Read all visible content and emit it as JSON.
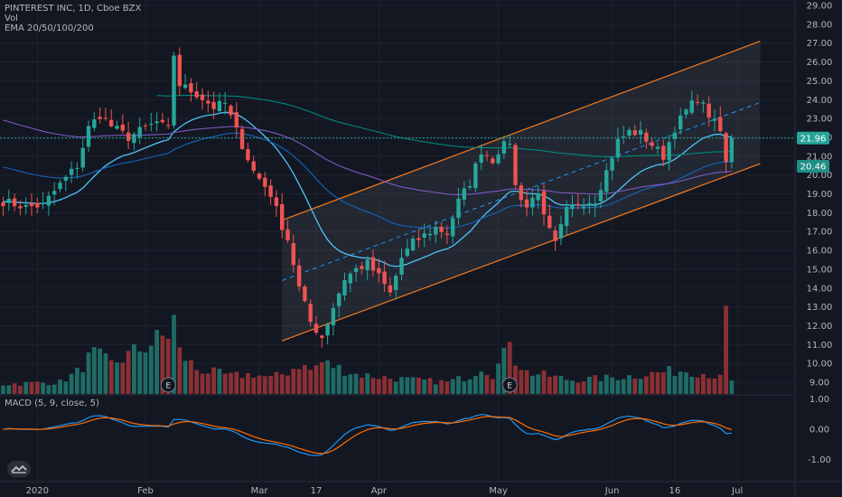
{
  "legend": {
    "symbol": "PINTEREST INC, 1D, Cboe BZX",
    "line2": "Vol",
    "line3": "EMA 20/50/100/200"
  },
  "macd_label": "MACD (5, 9, close, 5)",
  "badges": {
    "earnings": "E"
  },
  "price_tags": {
    "last": "21.96",
    "current": "20.46"
  },
  "colors": {
    "background": "#131722",
    "up": "#26a69a",
    "down": "#ef5350",
    "vol_up": "#1f6b65",
    "vol_down": "#8a3034",
    "channel": "#f57c1f",
    "ema20": "#4fc3f7",
    "ema50": "#1565c0",
    "ema100": "#7e57c2",
    "ema200": "#00897b",
    "macd": "#2196f3",
    "signal": "#ff6d00"
  },
  "chart_data": {
    "type": "candlestick",
    "y_ticks": [
      "29.00",
      "28.00",
      "27.00",
      "26.00",
      "25.00",
      "24.00",
      "23.00",
      "22.00",
      "21.00",
      "20.00",
      "19.00",
      "18.00",
      "17.00",
      "16.00",
      "15.00",
      "14.00",
      "13.00",
      "12.00",
      "11.00",
      "10.00",
      "9.00"
    ],
    "ylim": [
      8.7,
      29.3
    ],
    "x_ticks": [
      {
        "label": "2020",
        "day": 6
      },
      {
        "label": "Feb",
        "day": 25
      },
      {
        "label": "Mar",
        "day": 45
      },
      {
        "label": "17",
        "day": 55
      },
      {
        "label": "Apr",
        "day": 66
      },
      {
        "label": "May",
        "day": 87
      },
      {
        "label": "Jun",
        "day": 107
      },
      {
        "label": "16",
        "day": 118
      },
      {
        "label": "Jul",
        "day": 129
      }
    ],
    "macd_ticks": [
      "1.00",
      "0.00",
      "-1.00"
    ],
    "macd_ylim": [
      -1.6,
      1.2
    ],
    "last_price": 21.96,
    "current_price": 20.46,
    "earnings_days": [
      29,
      89
    ],
    "anchors": [
      [
        0,
        18.6
      ],
      [
        4,
        18.3
      ],
      [
        7,
        18.4
      ],
      [
        10,
        19.5
      ],
      [
        13,
        20.5
      ],
      [
        15,
        22.5
      ],
      [
        17,
        23.2
      ],
      [
        19,
        22.6
      ],
      [
        22,
        22.0
      ],
      [
        25,
        22.5
      ],
      [
        27,
        22.8
      ],
      [
        29,
        22.4
      ],
      [
        30,
        26.4
      ],
      [
        31,
        24.8
      ],
      [
        34,
        24.3
      ],
      [
        37,
        23.6
      ],
      [
        39,
        23.8
      ],
      [
        42,
        21.6
      ],
      [
        44,
        20.2
      ],
      [
        47,
        19.0
      ],
      [
        49,
        17.3
      ],
      [
        50,
        16.6
      ],
      [
        52,
        14.0
      ],
      [
        54,
        12.2
      ],
      [
        56,
        11.4
      ],
      [
        58,
        13.0
      ],
      [
        60,
        14.5
      ],
      [
        62,
        15.0
      ],
      [
        64,
        15.3
      ],
      [
        66,
        14.6
      ],
      [
        68,
        13.7
      ],
      [
        70,
        15.6
      ],
      [
        72,
        16.4
      ],
      [
        74,
        16.8
      ],
      [
        76,
        17.2
      ],
      [
        78,
        16.9
      ],
      [
        80,
        18.6
      ],
      [
        82,
        19.6
      ],
      [
        84,
        21.3
      ],
      [
        86,
        20.8
      ],
      [
        87,
        21.3
      ],
      [
        89,
        21.8
      ],
      [
        90,
        19.4
      ],
      [
        92,
        18.3
      ],
      [
        94,
        19.2
      ],
      [
        95,
        17.7
      ],
      [
        96,
        17.0
      ],
      [
        97,
        16.3
      ],
      [
        99,
        18.1
      ],
      [
        101,
        18.5
      ],
      [
        104,
        18.7
      ],
      [
        106,
        20.2
      ],
      [
        108,
        21.8
      ],
      [
        110,
        22.3
      ],
      [
        112,
        22.2
      ],
      [
        114,
        21.6
      ],
      [
        116,
        21.0
      ],
      [
        118,
        22.5
      ],
      [
        120,
        23.4
      ],
      [
        122,
        24.1
      ],
      [
        124,
        23.2
      ],
      [
        126,
        22.3
      ],
      [
        127,
        20.6
      ],
      [
        128,
        21.6
      ]
    ],
    "volume_ratios": [
      [
        0,
        0.1
      ],
      [
        10,
        0.12
      ],
      [
        13,
        0.22
      ],
      [
        15,
        0.35
      ],
      [
        16,
        0.4
      ],
      [
        19,
        0.3
      ],
      [
        29,
        0.6
      ],
      [
        30,
        0.75
      ],
      [
        31,
        0.42
      ],
      [
        34,
        0.25
      ],
      [
        40,
        0.18
      ],
      [
        44,
        0.2
      ],
      [
        47,
        0.16
      ],
      [
        50,
        0.22
      ],
      [
        52,
        0.3
      ],
      [
        54,
        0.24
      ],
      [
        56,
        0.32
      ],
      [
        58,
        0.28
      ],
      [
        62,
        0.2
      ],
      [
        68,
        0.16
      ],
      [
        72,
        0.14
      ],
      [
        78,
        0.12
      ],
      [
        82,
        0.18
      ],
      [
        84,
        0.28
      ],
      [
        86,
        0.2
      ],
      [
        88,
        0.38
      ],
      [
        89,
        0.62
      ],
      [
        90,
        0.35
      ],
      [
        92,
        0.22
      ],
      [
        96,
        0.18
      ],
      [
        100,
        0.14
      ],
      [
        106,
        0.16
      ],
      [
        110,
        0.18
      ],
      [
        116,
        0.22
      ],
      [
        120,
        0.24
      ],
      [
        124,
        0.2
      ],
      [
        126,
        0.16
      ],
      [
        127,
        0.78
      ],
      [
        128,
        0.12
      ]
    ],
    "channel": {
      "upper": [
        [
          49,
          17.6
        ],
        [
          133,
          27.1
        ]
      ],
      "lower": [
        [
          49,
          11.2
        ],
        [
          133,
          20.6
        ]
      ],
      "mid": [
        [
          49,
          14.4
        ],
        [
          133,
          23.85
        ]
      ]
    }
  }
}
